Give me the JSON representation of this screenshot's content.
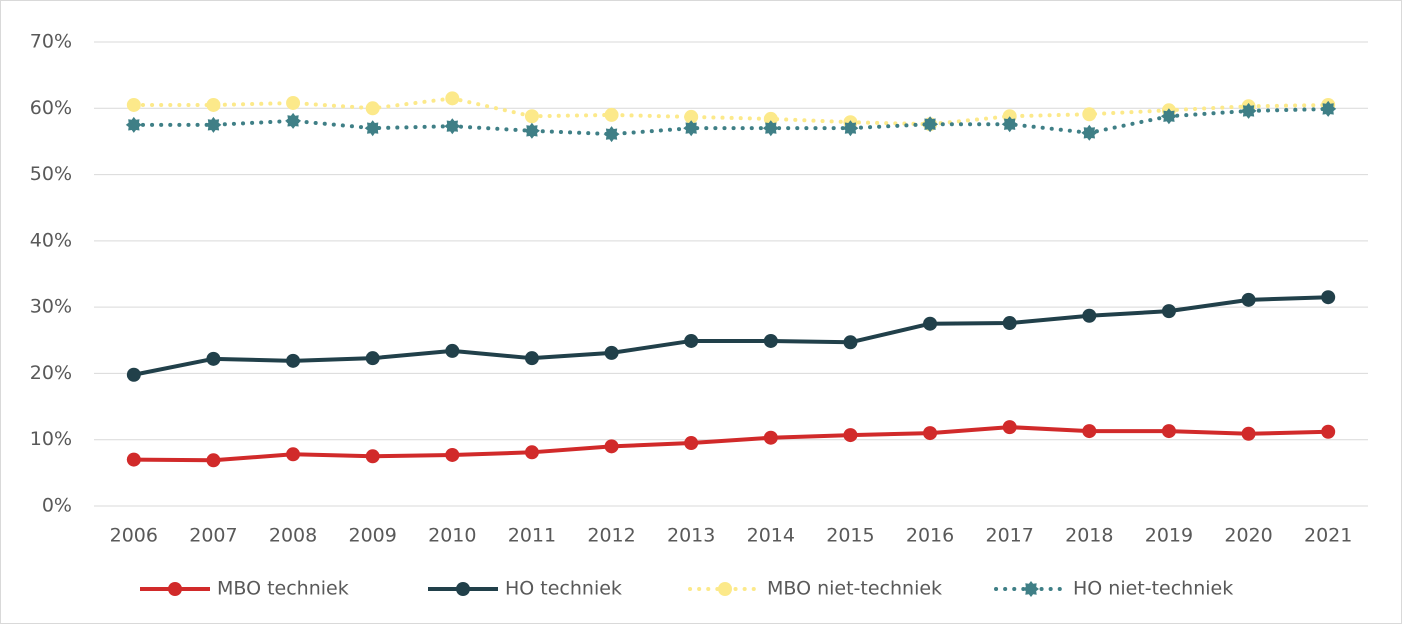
{
  "chart_data": {
    "type": "line",
    "categories": [
      "2006",
      "2007",
      "2008",
      "2009",
      "2010",
      "2011",
      "2012",
      "2013",
      "2014",
      "2015",
      "2016",
      "2017",
      "2018",
      "2019",
      "2020",
      "2021"
    ],
    "series": [
      {
        "name": "MBO techniek",
        "color": "#d12a2a",
        "style": "solid",
        "marker": "circle",
        "values": [
          7.0,
          6.9,
          7.8,
          7.5,
          7.7,
          8.1,
          9.0,
          9.5,
          10.3,
          10.7,
          11.0,
          11.9,
          11.3,
          11.3,
          10.9,
          11.2
        ]
      },
      {
        "name": "HO techniek",
        "color": "#21404a",
        "style": "solid",
        "marker": "circle",
        "values": [
          19.8,
          22.2,
          21.9,
          22.3,
          23.4,
          22.3,
          23.1,
          24.9,
          24.9,
          24.7,
          27.5,
          27.6,
          28.7,
          29.4,
          31.1,
          31.5
        ]
      },
      {
        "name": "MBO niet-techniek",
        "color": "#fce98a",
        "style": "dotted",
        "marker": "circle",
        "values": [
          60.5,
          60.5,
          60.8,
          60.0,
          61.5,
          58.8,
          59.0,
          58.7,
          58.4,
          57.9,
          57.6,
          58.8,
          59.1,
          59.7,
          60.3,
          60.5
        ]
      },
      {
        "name": "HO niet-techniek",
        "color": "#3f7f86",
        "style": "dotted",
        "marker": "star",
        "values": [
          57.5,
          57.5,
          58.1,
          57.0,
          57.3,
          56.6,
          56.1,
          57.0,
          57.0,
          57.0,
          57.6,
          57.6,
          56.3,
          58.8,
          59.6,
          59.9
        ]
      }
    ],
    "ylim": [
      0,
      70
    ],
    "yticks": [
      {
        "value": 0,
        "label": "0%"
      },
      {
        "value": 10,
        "label": "10%"
      },
      {
        "value": 20,
        "label": "20%"
      },
      {
        "value": 30,
        "label": "30%"
      },
      {
        "value": 40,
        "label": "40%"
      },
      {
        "value": 50,
        "label": "50%"
      },
      {
        "value": 60,
        "label": "60%"
      },
      {
        "value": 70,
        "label": "70%"
      }
    ],
    "grid": true,
    "legend": "bottom"
  }
}
